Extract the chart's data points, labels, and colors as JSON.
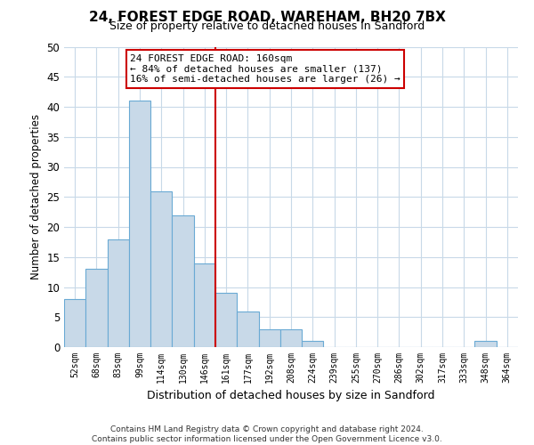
{
  "title": "24, FOREST EDGE ROAD, WAREHAM, BH20 7BX",
  "subtitle": "Size of property relative to detached houses in Sandford",
  "xlabel": "Distribution of detached houses by size in Sandford",
  "ylabel": "Number of detached properties",
  "bin_labels": [
    "52sqm",
    "68sqm",
    "83sqm",
    "99sqm",
    "114sqm",
    "130sqm",
    "146sqm",
    "161sqm",
    "177sqm",
    "192sqm",
    "208sqm",
    "224sqm",
    "239sqm",
    "255sqm",
    "270sqm",
    "286sqm",
    "302sqm",
    "317sqm",
    "333sqm",
    "348sqm",
    "364sqm"
  ],
  "bar_values": [
    8,
    13,
    18,
    41,
    26,
    22,
    14,
    9,
    6,
    3,
    3,
    1,
    0,
    0,
    0,
    0,
    0,
    0,
    0,
    1,
    0
  ],
  "bar_color": "#c8d9e8",
  "bar_edgecolor": "#6aaad4",
  "property_line_label_idx": 7,
  "property_line_color": "#cc0000",
  "ylim": [
    0,
    50
  ],
  "yticks": [
    0,
    5,
    10,
    15,
    20,
    25,
    30,
    35,
    40,
    45,
    50
  ],
  "annotation_title": "24 FOREST EDGE ROAD: 160sqm",
  "annotation_line1": "← 84% of detached houses are smaller (137)",
  "annotation_line2": "16% of semi-detached houses are larger (26) →",
  "footer_line1": "Contains HM Land Registry data © Crown copyright and database right 2024.",
  "footer_line2": "Contains public sector information licensed under the Open Government Licence v3.0.",
  "bg_color": "#ffffff",
  "grid_color": "#c8d9e8"
}
